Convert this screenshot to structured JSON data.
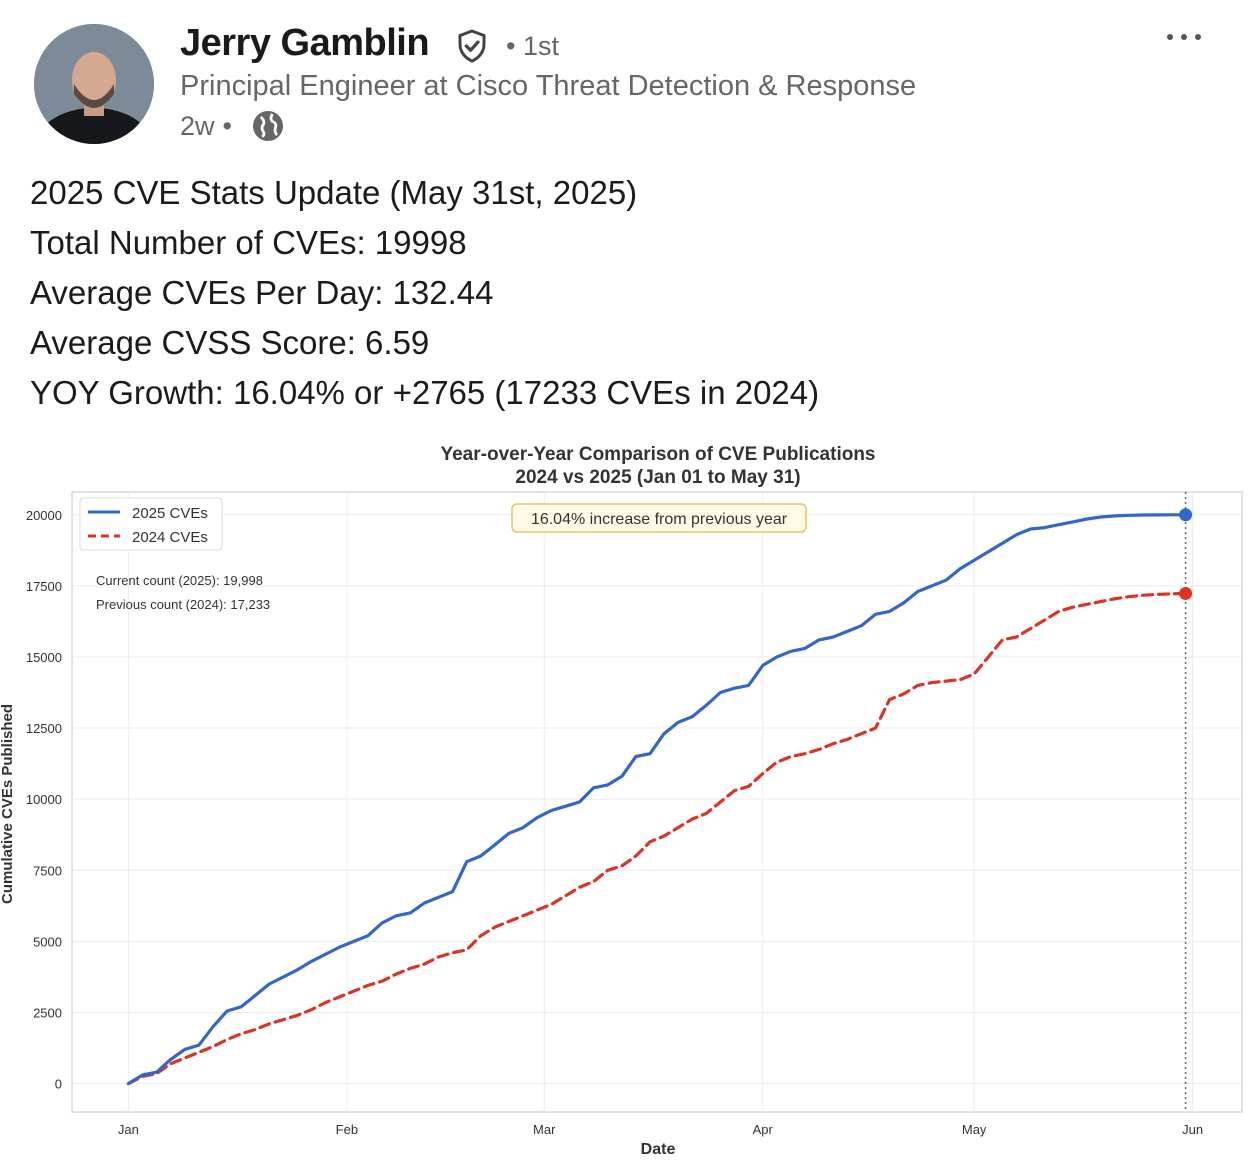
{
  "post": {
    "author": "Jerry Gamblin",
    "connection_degree": "• 1st",
    "headline": "Principal Engineer at Cisco Threat Detection & Response",
    "time_ago": "2w",
    "separator": "•",
    "avatar_icon": "avatar-photo",
    "verified_icon": "verified-shield-icon",
    "visibility_icon": "globe-icon",
    "menu_icon": "more-horizontal-icon",
    "lines": [
      "2025 CVE Stats Update (May 31st, 2025)",
      "Total Number of CVEs: 19998",
      "Average CVEs Per Day: 132.44",
      "Average CVSS Score: 6.59",
      "YOY Growth: 16.04% or +2765 (17233 CVEs in 2024)"
    ]
  },
  "chart_data": {
    "type": "line",
    "title": "Year-over-Year Comparison of CVE Publications",
    "subtitle": "2024 vs 2025 (Jan 01 to May 31)",
    "xlabel": "Date",
    "ylabel": "Cumulative CVEs Published",
    "ylim": [
      -1000,
      20800
    ],
    "xlim": [
      -8,
      158
    ],
    "yticks": [
      0,
      2500,
      5000,
      7500,
      10000,
      12500,
      15000,
      17500,
      20000
    ],
    "xticks": [
      {
        "label": "Jan",
        "day": 0
      },
      {
        "label": "Feb",
        "day": 31
      },
      {
        "label": "Mar",
        "day": 59
      },
      {
        "label": "Apr",
        "day": 90
      },
      {
        "label": "May",
        "day": 120
      },
      {
        "label": "Jun",
        "day": 151
      }
    ],
    "grid": true,
    "legend_position": "top-left",
    "annotation_box": "16.04% increase from previous year",
    "text_annotations": [
      "Current count (2025): 19,998",
      "Previous count (2024): 17,233"
    ],
    "vline_day": 150,
    "series": [
      {
        "name": "2025 CVEs",
        "color": "#3366cc",
        "dash": false,
        "x": [
          0,
          2,
          4,
          6,
          8,
          10,
          12,
          14,
          16,
          18,
          20,
          22,
          24,
          26,
          28,
          30,
          32,
          34,
          36,
          38,
          40,
          42,
          44,
          46,
          48,
          50,
          52,
          54,
          56,
          58,
          60,
          62,
          64,
          66,
          68,
          70,
          72,
          74,
          76,
          78,
          80,
          82,
          84,
          86,
          88,
          90,
          92,
          94,
          96,
          98,
          100,
          102,
          104,
          106,
          108,
          110,
          112,
          114,
          116,
          118,
          120,
          122,
          124,
          126,
          128,
          130,
          132,
          134,
          136,
          138,
          140,
          142,
          144,
          146,
          148,
          150
        ],
        "values": [
          0,
          300,
          400,
          850,
          1200,
          1350,
          2000,
          2550,
          2700,
          3100,
          3500,
          3750,
          4000,
          4300,
          4550,
          4800,
          5000,
          5200,
          5650,
          5900,
          6000,
          6350,
          6550,
          6750,
          7800,
          8000,
          8400,
          8800,
          9000,
          9350,
          9600,
          9750,
          9900,
          10400,
          10500,
          10800,
          11500,
          11600,
          12300,
          12700,
          12900,
          13300,
          13750,
          13900,
          14000,
          14700,
          15000,
          15200,
          15300,
          15600,
          15700,
          15900,
          16100,
          16500,
          16600,
          16900,
          17300,
          17500,
          17700,
          18100,
          18400,
          18700,
          19000,
          19300,
          19500,
          19550,
          19650,
          19750,
          19850,
          19920,
          19960,
          19980,
          19990,
          19995,
          19997,
          19998
        ]
      },
      {
        "name": "2024 CVEs",
        "color": "#dd3322",
        "dash": true,
        "x": [
          0,
          2,
          4,
          6,
          8,
          10,
          12,
          14,
          16,
          18,
          20,
          22,
          24,
          26,
          28,
          30,
          32,
          34,
          36,
          38,
          40,
          42,
          44,
          46,
          48,
          50,
          52,
          54,
          56,
          58,
          60,
          62,
          64,
          66,
          68,
          70,
          72,
          74,
          76,
          78,
          80,
          82,
          84,
          86,
          88,
          90,
          92,
          94,
          96,
          98,
          100,
          102,
          104,
          106,
          108,
          110,
          112,
          114,
          116,
          118,
          120,
          122,
          124,
          126,
          128,
          130,
          132,
          134,
          136,
          138,
          140,
          142,
          144,
          146,
          148,
          150
        ],
        "values": [
          0,
          250,
          350,
          700,
          900,
          1100,
          1300,
          1550,
          1750,
          1900,
          2100,
          2250,
          2400,
          2600,
          2850,
          3050,
          3250,
          3450,
          3600,
          3850,
          4050,
          4200,
          4450,
          4600,
          4700,
          5200,
          5500,
          5700,
          5900,
          6100,
          6300,
          6600,
          6900,
          7100,
          7500,
          7650,
          8000,
          8500,
          8700,
          9000,
          9300,
          9500,
          9900,
          10300,
          10450,
          10900,
          11300,
          11500,
          11600,
          11750,
          11950,
          12100,
          12300,
          12500,
          13500,
          13700,
          14000,
          14100,
          14150,
          14200,
          14400,
          15000,
          15600,
          15700,
          16000,
          16300,
          16600,
          16750,
          16850,
          16950,
          17050,
          17120,
          17170,
          17200,
          17220,
          17233
        ]
      }
    ],
    "endpoints": [
      {
        "series": "2025 CVEs",
        "day": 150,
        "value": 19998
      },
      {
        "series": "2024 CVEs",
        "day": 150,
        "value": 17233
      }
    ]
  }
}
